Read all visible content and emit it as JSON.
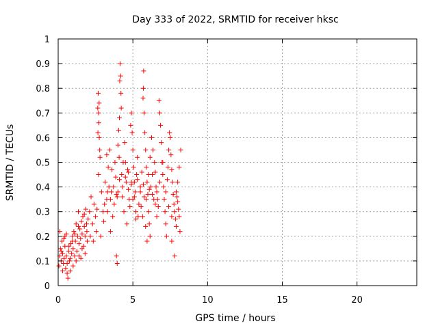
{
  "chart_data": {
    "type": "scatter",
    "title": "Day 333 of 2022, SRMTID for receiver hksc",
    "xlabel": "GPS time / hours",
    "ylabel": "SRMTID / TECUs",
    "xlim": [
      0,
      24
    ],
    "ylim": [
      0,
      1
    ],
    "xticks": [
      0,
      5,
      10,
      15,
      20
    ],
    "yticks": [
      0,
      0.1,
      0.2,
      0.3,
      0.4,
      0.5,
      0.6,
      0.7,
      0.8,
      0.9,
      1
    ],
    "grid": true,
    "marker": "+",
    "colors": {
      "series": "#ff0000",
      "grid": "#a0a0a0",
      "axis": "#000000"
    },
    "series": [
      {
        "name": "hksc",
        "points": [
          [
            0.05,
            0.08
          ],
          [
            0.1,
            0.12
          ],
          [
            0.15,
            0.15
          ],
          [
            0.2,
            0.1
          ],
          [
            0.25,
            0.18
          ],
          [
            0.3,
            0.13
          ],
          [
            0.35,
            0.09
          ],
          [
            0.4,
            0.11
          ],
          [
            0.45,
            0.16
          ],
          [
            0.5,
            0.07
          ],
          [
            0.55,
            0.12
          ],
          [
            0.6,
            0.05
          ],
          [
            0.65,
            0.03
          ],
          [
            0.7,
            0.14
          ],
          [
            0.75,
            0.1
          ],
          [
            0.8,
            0.06
          ],
          [
            0.85,
            0.17
          ],
          [
            0.9,
            0.13
          ],
          [
            0.95,
            0.2
          ],
          [
            1.0,
            0.15
          ],
          [
            1.05,
            0.22
          ],
          [
            1.1,
            0.12
          ],
          [
            1.15,
            0.18
          ],
          [
            1.2,
            0.25
          ],
          [
            1.25,
            0.14
          ],
          [
            1.3,
            0.2
          ],
          [
            1.35,
            0.3
          ],
          [
            1.4,
            0.17
          ],
          [
            1.45,
            0.23
          ],
          [
            1.5,
            0.19
          ],
          [
            1.55,
            0.26
          ],
          [
            1.6,
            0.21
          ],
          [
            1.65,
            0.28
          ],
          [
            1.7,
            0.16
          ],
          [
            1.75,
            0.24
          ],
          [
            1.8,
            0.2
          ],
          [
            1.85,
            0.31
          ],
          [
            1.9,
            0.25
          ],
          [
            1.95,
            0.18
          ],
          [
            2.0,
            0.27
          ],
          [
            0.2,
            0.14
          ],
          [
            0.3,
            0.06
          ],
          [
            0.45,
            0.2
          ],
          [
            0.6,
            0.09
          ],
          [
            0.8,
            0.11
          ],
          [
            1.0,
            0.08
          ],
          [
            1.2,
            0.1
          ],
          [
            1.4,
            0.12
          ],
          [
            1.6,
            0.15
          ],
          [
            1.8,
            0.13
          ],
          [
            0.12,
            0.22
          ],
          [
            0.38,
            0.19
          ],
          [
            0.72,
            0.16
          ],
          [
            1.12,
            0.21
          ],
          [
            1.52,
            0.11
          ],
          [
            1.92,
            0.22
          ],
          [
            0.55,
            0.21
          ],
          [
            0.95,
            0.18
          ],
          [
            1.35,
            0.24
          ],
          [
            1.75,
            0.29
          ],
          [
            2.1,
            0.3
          ],
          [
            2.2,
            0.36
          ],
          [
            2.3,
            0.25
          ],
          [
            2.4,
            0.33
          ],
          [
            2.5,
            0.28
          ],
          [
            2.6,
            0.31
          ],
          [
            2.7,
            0.45
          ],
          [
            2.8,
            0.52
          ],
          [
            2.9,
            0.38
          ],
          [
            3.0,
            0.3
          ],
          [
            2.65,
            0.72
          ],
          [
            2.68,
            0.78
          ],
          [
            2.72,
            0.66
          ],
          [
            2.75,
            0.6
          ],
          [
            2.78,
            0.55
          ],
          [
            2.7,
            0.7
          ],
          [
            2.74,
            0.74
          ],
          [
            2.66,
            0.62
          ],
          [
            2.15,
            0.2
          ],
          [
            2.35,
            0.18
          ],
          [
            2.55,
            0.22
          ],
          [
            2.85,
            0.2
          ],
          [
            3.05,
            0.26
          ],
          [
            3.15,
            0.42
          ],
          [
            3.25,
            0.35
          ],
          [
            3.35,
            0.48
          ],
          [
            3.45,
            0.55
          ],
          [
            3.55,
            0.38
          ],
          [
            3.65,
            0.28
          ],
          [
            3.75,
            0.33
          ],
          [
            3.85,
            0.44
          ],
          [
            3.95,
            0.36
          ],
          [
            3.25,
            0.53
          ],
          [
            3.4,
            0.4
          ],
          [
            3.6,
            0.47
          ],
          [
            3.8,
            0.5
          ],
          [
            3.3,
            0.3
          ],
          [
            3.5,
            0.22
          ],
          [
            4.0,
            0.57
          ],
          [
            4.05,
            0.63
          ],
          [
            4.1,
            0.68
          ],
          [
            4.15,
            0.9
          ],
          [
            4.18,
            0.85
          ],
          [
            4.12,
            0.83
          ],
          [
            4.2,
            0.78
          ],
          [
            4.22,
            0.72
          ],
          [
            4.08,
            0.52
          ],
          [
            4.25,
            0.45
          ],
          [
            3.9,
            0.12
          ],
          [
            3.95,
            0.09
          ],
          [
            4.0,
            0.38
          ],
          [
            4.3,
            0.4
          ],
          [
            4.35,
            0.5
          ],
          [
            4.45,
            0.58
          ],
          [
            4.55,
            0.42
          ],
          [
            4.65,
            0.47
          ],
          [
            4.75,
            0.35
          ],
          [
            4.85,
            0.65
          ],
          [
            4.9,
            0.7
          ],
          [
            4.95,
            0.62
          ],
          [
            5.0,
            0.55
          ],
          [
            5.05,
            0.48
          ],
          [
            5.1,
            0.42
          ],
          [
            5.15,
            0.38
          ],
          [
            5.2,
            0.3
          ],
          [
            5.25,
            0.45
          ],
          [
            5.3,
            0.52
          ],
          [
            5.35,
            0.28
          ],
          [
            4.4,
            0.3
          ],
          [
            4.6,
            0.25
          ],
          [
            4.8,
            0.32
          ],
          [
            5.0,
            0.35
          ],
          [
            5.2,
            0.27
          ],
          [
            5.4,
            0.33
          ],
          [
            5.5,
            0.4
          ],
          [
            5.6,
            0.46
          ],
          [
            5.7,
            0.8
          ],
          [
            5.72,
            0.87
          ],
          [
            5.68,
            0.76
          ],
          [
            5.75,
            0.7
          ],
          [
            5.8,
            0.62
          ],
          [
            5.85,
            0.55
          ],
          [
            5.9,
            0.48
          ],
          [
            5.95,
            0.42
          ],
          [
            6.0,
            0.37
          ],
          [
            6.05,
            0.3
          ],
          [
            6.1,
            0.25
          ],
          [
            6.15,
            0.2
          ],
          [
            5.55,
            0.32
          ],
          [
            5.65,
            0.28
          ],
          [
            5.75,
            0.36
          ],
          [
            5.85,
            0.24
          ],
          [
            5.95,
            0.18
          ],
          [
            6.05,
            0.45
          ],
          [
            6.15,
            0.52
          ],
          [
            6.25,
            0.6
          ],
          [
            6.35,
            0.55
          ],
          [
            6.45,
            0.5
          ],
          [
            6.5,
            0.46
          ],
          [
            6.55,
            0.4
          ],
          [
            6.6,
            0.38
          ],
          [
            6.65,
            0.35
          ],
          [
            6.7,
            0.32
          ],
          [
            6.75,
            0.75
          ],
          [
            6.8,
            0.7
          ],
          [
            6.85,
            0.65
          ],
          [
            6.9,
            0.58
          ],
          [
            6.95,
            0.5
          ],
          [
            7.0,
            0.45
          ],
          [
            7.05,
            0.4
          ],
          [
            7.1,
            0.35
          ],
          [
            7.15,
            0.3
          ],
          [
            7.2,
            0.25
          ],
          [
            7.25,
            0.2
          ],
          [
            7.3,
            0.43
          ],
          [
            7.35,
            0.48
          ],
          [
            7.4,
            0.55
          ],
          [
            7.45,
            0.62
          ],
          [
            7.5,
            0.6
          ],
          [
            7.55,
            0.53
          ],
          [
            7.6,
            0.47
          ],
          [
            7.65,
            0.42
          ],
          [
            7.7,
            0.37
          ],
          [
            7.75,
            0.33
          ],
          [
            7.8,
            0.3
          ],
          [
            7.85,
            0.27
          ],
          [
            7.9,
            0.24
          ],
          [
            7.95,
            0.36
          ],
          [
            8.0,
            0.34
          ],
          [
            8.05,
            0.31
          ],
          [
            8.1,
            0.28
          ],
          [
            8.15,
            0.22
          ],
          [
            8.2,
            0.55
          ],
          [
            8.1,
            0.48
          ],
          [
            8.0,
            0.42
          ],
          [
            7.9,
            0.38
          ],
          [
            7.8,
            0.12
          ],
          [
            7.6,
            0.18
          ],
          [
            6.2,
            0.4
          ],
          [
            6.4,
            0.35
          ],
          [
            6.6,
            0.28
          ],
          [
            6.8,
            0.42
          ],
          [
            7.0,
            0.5
          ],
          [
            7.2,
            0.38
          ],
          [
            7.4,
            0.32
          ],
          [
            7.6,
            0.28
          ],
          [
            6.3,
            0.45
          ],
          [
            6.5,
            0.33
          ],
          [
            4.5,
            0.44
          ],
          [
            4.7,
            0.39
          ],
          [
            4.9,
            0.41
          ],
          [
            5.1,
            0.36
          ],
          [
            5.3,
            0.43
          ],
          [
            5.5,
            0.38
          ],
          [
            5.7,
            0.41
          ],
          [
            5.9,
            0.35
          ],
          [
            6.1,
            0.39
          ],
          [
            6.3,
            0.37
          ],
          [
            3.1,
            0.33
          ],
          [
            3.3,
            0.38
          ],
          [
            3.5,
            0.35
          ],
          [
            3.7,
            0.4
          ],
          [
            3.9,
            0.37
          ],
          [
            4.1,
            0.43
          ],
          [
            4.3,
            0.36
          ],
          [
            4.5,
            0.5
          ],
          [
            4.7,
            0.46
          ],
          [
            4.9,
            0.42
          ]
        ]
      }
    ]
  }
}
